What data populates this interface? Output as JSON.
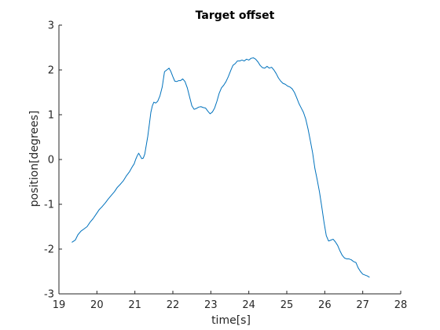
{
  "chart_data": {
    "type": "line",
    "title": "Target offset",
    "xlabel": "time[s]",
    "ylabel": "position[degrees]",
    "xlim": [
      19,
      28
    ],
    "ylim": [
      -3,
      3
    ],
    "xticks": [
      19,
      20,
      21,
      22,
      23,
      24,
      25,
      26,
      27,
      28
    ],
    "yticks": [
      -3,
      -2,
      -1,
      0,
      1,
      2,
      3
    ],
    "xtick_labels": [
      "19",
      "20",
      "21",
      "22",
      "23",
      "24",
      "25",
      "26",
      "27",
      "28"
    ],
    "ytick_labels": [
      "-3",
      "-2",
      "-1",
      "0",
      "1",
      "2",
      "3"
    ],
    "grid": false,
    "box": false,
    "line_color": "#0072bd",
    "axis_color": "#262626",
    "series": [
      {
        "x": [
          19.34,
          19.43,
          19.5,
          19.58,
          19.66,
          19.74,
          19.82,
          19.9,
          19.98,
          20.06,
          20.14,
          20.22,
          20.3,
          20.38,
          20.46,
          20.54,
          20.62,
          20.7,
          20.78,
          20.86,
          20.94,
          20.98,
          21.02,
          21.06,
          21.1,
          21.14,
          21.18,
          21.22,
          21.26,
          21.3,
          21.34,
          21.38,
          21.42,
          21.46,
          21.5,
          21.55,
          21.6,
          21.66,
          21.72,
          21.78,
          21.84,
          21.9,
          21.95,
          22.0,
          22.05,
          22.1,
          22.15,
          22.2,
          22.26,
          22.32,
          22.38,
          22.44,
          22.5,
          22.56,
          22.62,
          22.68,
          22.74,
          22.8,
          22.86,
          22.92,
          22.98,
          23.04,
          23.1,
          23.16,
          23.22,
          23.28,
          23.34,
          23.4,
          23.46,
          23.52,
          23.58,
          23.64,
          23.7,
          23.76,
          23.82,
          23.88,
          23.94,
          24.0,
          24.06,
          24.12,
          24.18,
          24.24,
          24.3,
          24.36,
          24.42,
          24.48,
          24.54,
          24.6,
          24.66,
          24.72,
          24.78,
          24.84,
          24.9,
          24.96,
          25.02,
          25.08,
          25.14,
          25.2,
          25.26,
          25.32,
          25.38,
          25.44,
          25.5,
          25.56,
          25.62,
          25.68,
          25.74,
          25.8,
          25.86,
          25.92,
          25.98,
          26.04,
          26.1,
          26.16,
          26.22,
          26.28,
          26.34,
          26.4,
          26.46,
          26.52,
          26.58,
          26.64,
          26.7,
          26.76,
          26.82,
          26.88,
          26.94,
          27.0,
          27.06,
          27.12,
          27.18
        ],
        "y": [
          -1.85,
          -1.8,
          -1.68,
          -1.6,
          -1.55,
          -1.5,
          -1.4,
          -1.32,
          -1.22,
          -1.12,
          -1.05,
          -0.97,
          -0.88,
          -0.8,
          -0.72,
          -0.62,
          -0.55,
          -0.47,
          -0.36,
          -0.27,
          -0.15,
          -0.1,
          0.0,
          0.08,
          0.14,
          0.08,
          0.02,
          0.03,
          0.12,
          0.32,
          0.52,
          0.78,
          1.05,
          1.2,
          1.28,
          1.26,
          1.3,
          1.42,
          1.62,
          1.96,
          2.0,
          2.04,
          1.96,
          1.85,
          1.75,
          1.74,
          1.76,
          1.76,
          1.8,
          1.74,
          1.6,
          1.4,
          1.2,
          1.12,
          1.14,
          1.17,
          1.18,
          1.16,
          1.15,
          1.08,
          1.02,
          1.06,
          1.15,
          1.3,
          1.48,
          1.6,
          1.66,
          1.74,
          1.85,
          1.98,
          2.1,
          2.14,
          2.2,
          2.2,
          2.22,
          2.2,
          2.24,
          2.22,
          2.26,
          2.27,
          2.24,
          2.18,
          2.1,
          2.05,
          2.04,
          2.08,
          2.04,
          2.06,
          2.0,
          1.92,
          1.82,
          1.75,
          1.7,
          1.68,
          1.64,
          1.62,
          1.58,
          1.5,
          1.38,
          1.25,
          1.15,
          1.05,
          0.9,
          0.68,
          0.42,
          0.15,
          -0.2,
          -0.45,
          -0.72,
          -1.05,
          -1.4,
          -1.7,
          -1.82,
          -1.8,
          -1.78,
          -1.84,
          -1.92,
          -2.04,
          -2.14,
          -2.2,
          -2.22,
          -2.22,
          -2.24,
          -2.28,
          -2.3,
          -2.42,
          -2.5,
          -2.56,
          -2.58,
          -2.6,
          -2.63
        ]
      }
    ]
  }
}
